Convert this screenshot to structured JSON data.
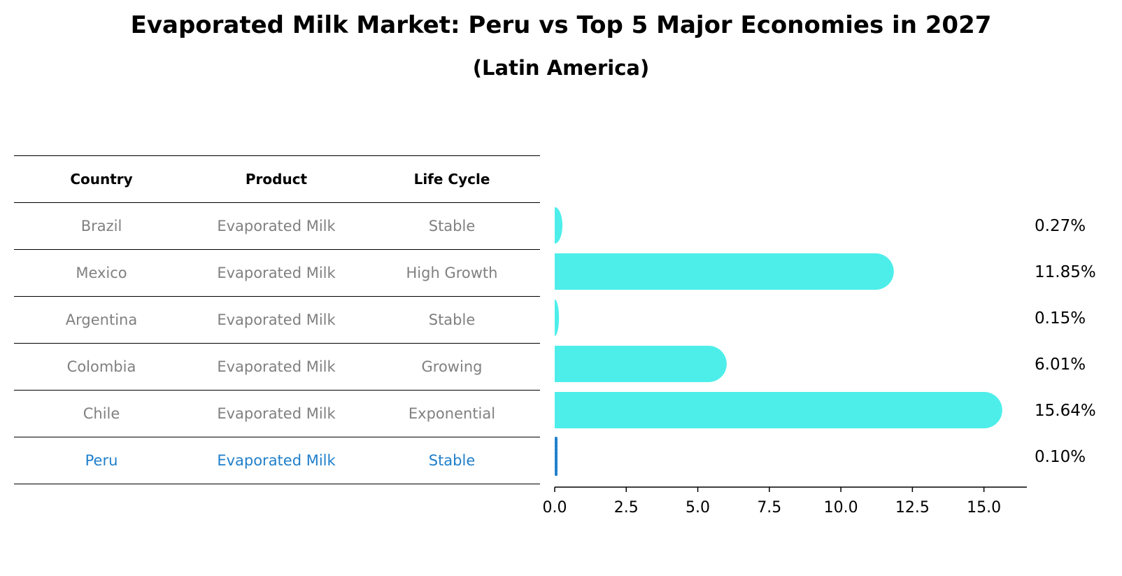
{
  "title": "Evaporated Milk Market: Peru vs Top 5 Major Economies in 2027",
  "subtitle": "(Latin America)",
  "table": {
    "headers": [
      "Country",
      "Product",
      "Life Cycle"
    ],
    "rows": [
      {
        "country": "Brazil",
        "product": "Evaporated Milk",
        "life_cycle": "Stable"
      },
      {
        "country": "Mexico",
        "product": "Evaporated Milk",
        "life_cycle": "High Growth"
      },
      {
        "country": "Argentina",
        "product": "Evaporated Milk",
        "life_cycle": "Stable"
      },
      {
        "country": "Colombia",
        "product": "Evaporated Milk",
        "life_cycle": "Growing"
      },
      {
        "country": "Chile",
        "product": "Evaporated Milk",
        "life_cycle": "Exponential"
      },
      {
        "country": "Peru",
        "product": "Evaporated Milk",
        "life_cycle": "Stable"
      }
    ],
    "highlight_row": "Peru"
  },
  "colors": {
    "bar": "#4deeea",
    "highlight": "#1f7fcb",
    "muted_text": "#808080"
  },
  "chart_data": {
    "type": "bar",
    "orientation": "horizontal",
    "categories": [
      "Brazil",
      "Mexico",
      "Argentina",
      "Colombia",
      "Chile",
      "Peru"
    ],
    "values": [
      0.27,
      11.85,
      0.15,
      6.01,
      15.64,
      0.1
    ],
    "value_labels": [
      "0.27%",
      "11.85%",
      "0.15%",
      "6.01%",
      "15.64%",
      "0.10%"
    ],
    "xlim": [
      0,
      16.5
    ],
    "xticks": [
      "0.0",
      "2.5",
      "5.0",
      "7.5",
      "10.0",
      "12.5",
      "15.0"
    ],
    "xtick_values": [
      0,
      2.5,
      5,
      7.5,
      10,
      12.5,
      15
    ],
    "grid": false
  }
}
